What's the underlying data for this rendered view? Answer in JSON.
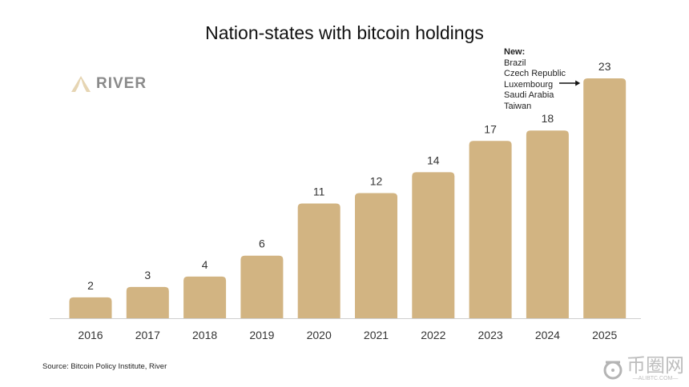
{
  "chart_data": {
    "type": "bar",
    "title": "Nation-states with bitcoin holdings",
    "categories": [
      "2016",
      "2017",
      "2018",
      "2019",
      "2020",
      "2021",
      "2022",
      "2023",
      "2024",
      "2025"
    ],
    "values": [
      2,
      3,
      4,
      6,
      11,
      12,
      14,
      17,
      18,
      23
    ],
    "data_labels": [
      "2",
      "3",
      "4",
      "6",
      "11",
      "12",
      "14",
      "17",
      "18",
      "23"
    ],
    "xlabel": "",
    "ylabel": "",
    "ylim": [
      0,
      23
    ],
    "grid": false,
    "bar_color": "#d2b482",
    "annotation": {
      "heading": "New:",
      "items": [
        "Brazil",
        "Czech Republic",
        "Luxembourg",
        "Saudi Arabia",
        "Taiwan"
      ],
      "target": "2025"
    },
    "source": "Source: Bitcoin Policy Institute, River"
  },
  "logo": {
    "text": "RIVER",
    "color": "#d9c49c"
  },
  "watermark": {
    "text": "币圈网",
    "subtext": "—ALIBTC.COM—"
  }
}
